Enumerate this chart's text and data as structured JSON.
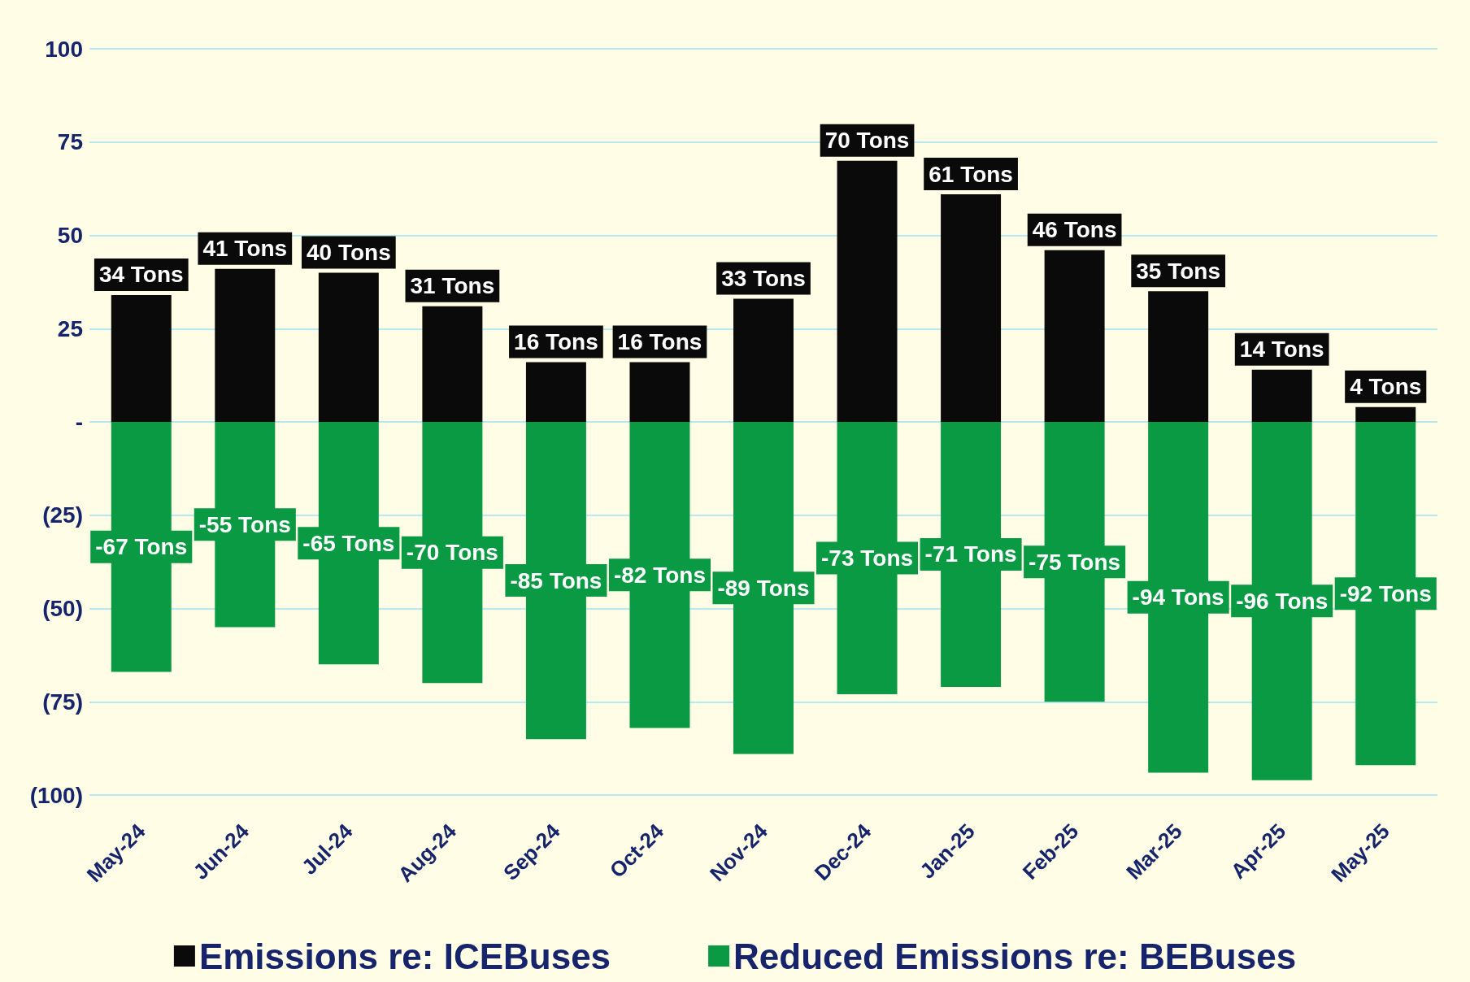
{
  "chart_data": {
    "type": "bar",
    "stacked": true,
    "categories": [
      "May-24",
      "Jun-24",
      "Jul-24",
      "Aug-24",
      "Sep-24",
      "Oct-24",
      "Nov-24",
      "Dec-24",
      "Jan-25",
      "Feb-25",
      "Mar-25",
      "Apr-25",
      "May-25"
    ],
    "series": [
      {
        "name": "Emissions re: ICEBuses",
        "color": "#0a0a0a",
        "values": [
          34,
          41,
          40,
          31,
          16,
          16,
          33,
          70,
          61,
          46,
          35,
          14,
          4
        ],
        "value_labels": [
          "34 Tons",
          "41 Tons",
          "40 Tons",
          "31 Tons",
          "16 Tons",
          "16 Tons",
          "33 Tons",
          "70 Tons",
          "61 Tons",
          "46 Tons",
          "35 Tons",
          "14 Tons",
          "4 Tons"
        ]
      },
      {
        "name": "Reduced Emissions re: BEBuses",
        "color": "#0a9a44",
        "values": [
          -67,
          -55,
          -65,
          -70,
          -85,
          -82,
          -89,
          -73,
          -71,
          -75,
          -94,
          -96,
          -92
        ],
        "value_labels": [
          "-67 Tons",
          "-55 Tons",
          "-65 Tons",
          "-70 Tons",
          "-85 Tons",
          "-82 Tons",
          "-89 Tons",
          "-73 Tons",
          "-71 Tons",
          "-75 Tons",
          "-94 Tons",
          "-96 Tons",
          "-92 Tons"
        ]
      }
    ],
    "ylim": [
      -100,
      100
    ],
    "yticks": [
      100,
      75,
      50,
      25,
      {
        "value": 0,
        "label": "-"
      },
      {
        "value": -25,
        "label": "(25)"
      },
      {
        "value": -50,
        "label": "(50)"
      },
      {
        "value": -75,
        "label": "(75)"
      },
      {
        "value": -100,
        "label": "(100)"
      }
    ],
    "grid": "y",
    "legend": "bottom"
  }
}
